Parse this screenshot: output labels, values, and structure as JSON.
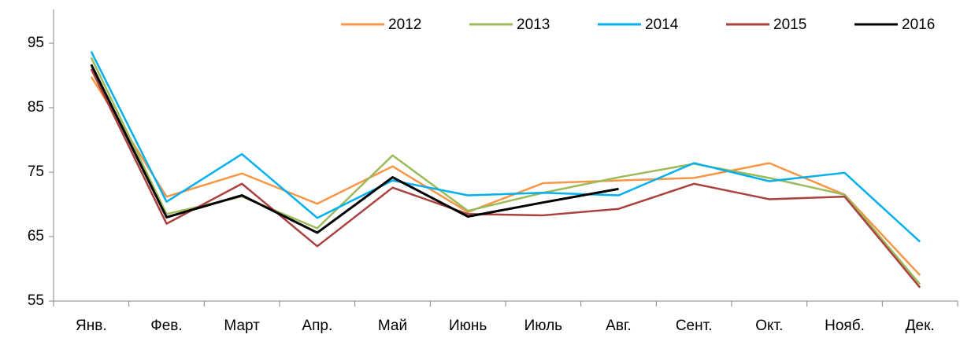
{
  "chart_data": {
    "type": "line",
    "categories": [
      "Янв.",
      "Фев.",
      "Март",
      "Апр.",
      "Май",
      "Июнь",
      "Июль",
      "Авг.",
      "Сент.",
      "Окт.",
      "Нояб.",
      "Дек."
    ],
    "series": [
      {
        "name": "2012",
        "color": "#f79646",
        "values": [
          89.8,
          71.2,
          74.8,
          70.1,
          75.9,
          68.8,
          73.3,
          73.7,
          74.1,
          76.4,
          71.5,
          59.0
        ]
      },
      {
        "name": "2013",
        "color": "#9bbb59",
        "values": [
          92.8,
          68.5,
          71.2,
          66.3,
          77.6,
          69.0,
          71.8,
          74.2,
          76.3,
          74.1,
          71.5,
          57.6
        ]
      },
      {
        "name": "2014",
        "color": "#00b0f0",
        "values": [
          93.7,
          70.4,
          77.8,
          67.9,
          73.7,
          71.4,
          71.8,
          71.4,
          76.4,
          73.6,
          74.9,
          64.2
        ]
      },
      {
        "name": "2015",
        "color": "#a9423f",
        "values": [
          91.0,
          67.0,
          73.2,
          63.5,
          72.6,
          68.5,
          68.3,
          69.3,
          73.2,
          70.8,
          71.2,
          57.1
        ]
      },
      {
        "name": "2016",
        "color": "#000000",
        "values": [
          91.7,
          68.0,
          71.4,
          65.6,
          74.2,
          68.1,
          70.3,
          72.4,
          null,
          null,
          null,
          null
        ]
      }
    ],
    "ylim": [
      55,
      100
    ],
    "yticks": [
      55,
      65,
      75,
      85,
      95
    ],
    "grid": false,
    "legend": "top-right"
  }
}
